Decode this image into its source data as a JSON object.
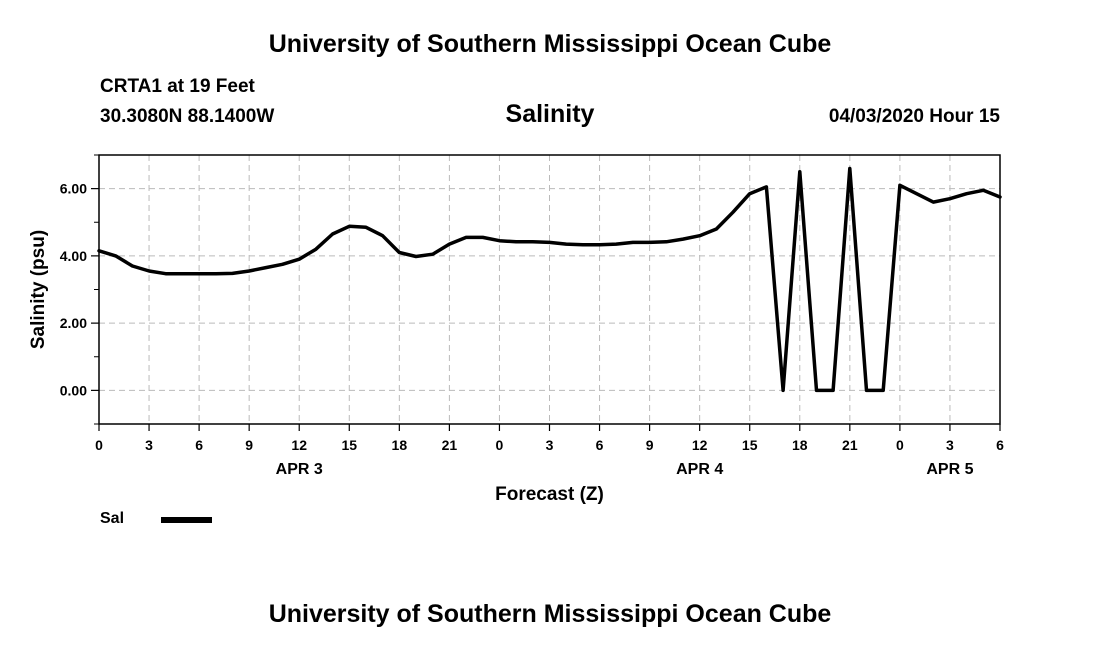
{
  "header": {
    "title": "University of Southern Mississippi Ocean Cube",
    "station": "CRTA1 at 19 Feet",
    "location": "30.3080N 88.1400W",
    "datetime": "04/03/2020 Hour 15"
  },
  "footer": {
    "title": "University of Southern Mississippi Ocean Cube"
  },
  "legend": {
    "label": "Sal"
  },
  "chart_data": {
    "type": "line",
    "title": "Salinity",
    "xlabel": "Forecast (Z)",
    "ylabel": "Salinity (psu)",
    "xlim": [
      0,
      54
    ],
    "ylim": [
      -1,
      7
    ],
    "x_ticks": [
      0,
      3,
      6,
      9,
      12,
      15,
      18,
      21,
      24,
      27,
      30,
      33,
      36,
      39,
      42,
      45,
      48,
      51,
      54
    ],
    "x_tick_labels": [
      "0",
      "3",
      "6",
      "9",
      "12",
      "15",
      "18",
      "21",
      "0",
      "3",
      "6",
      "9",
      "12",
      "15",
      "18",
      "21",
      "0",
      "3",
      "6"
    ],
    "date_labels": [
      {
        "x": 12,
        "label": "APR 3"
      },
      {
        "x": 36,
        "label": "APR 4"
      },
      {
        "x": 51,
        "label": "APR 5"
      }
    ],
    "y_ticks": [
      0,
      2,
      4,
      6
    ],
    "y_tick_labels": [
      "0.00",
      "2.00",
      "4.00",
      "6.00"
    ],
    "grid": true,
    "series": [
      {
        "name": "Sal",
        "color": "#000000",
        "x": [
          0,
          1,
          2,
          3,
          4,
          5,
          6,
          7,
          8,
          9,
          10,
          11,
          12,
          13,
          14,
          15,
          16,
          17,
          18,
          19,
          20,
          21,
          22,
          23,
          24,
          25,
          26,
          27,
          28,
          29,
          30,
          31,
          32,
          33,
          34,
          35,
          36,
          37,
          38,
          39,
          40,
          41,
          42,
          43,
          44,
          45,
          46,
          47,
          48,
          49,
          50,
          51,
          52,
          53,
          54
        ],
        "values": [
          4.15,
          4.0,
          3.7,
          3.55,
          3.47,
          3.47,
          3.47,
          3.47,
          3.48,
          3.55,
          3.65,
          3.75,
          3.9,
          4.2,
          4.65,
          4.88,
          4.85,
          4.6,
          4.1,
          3.98,
          4.05,
          4.35,
          4.55,
          4.55,
          4.45,
          4.42,
          4.42,
          4.4,
          4.35,
          4.33,
          4.33,
          4.35,
          4.4,
          4.4,
          4.42,
          4.5,
          4.6,
          4.8,
          5.3,
          5.85,
          6.05,
          0.0,
          6.5,
          0.0,
          0.0,
          6.6,
          0.0,
          0.0,
          6.1,
          5.85,
          5.6,
          5.7,
          5.85,
          5.95,
          5.75
        ]
      }
    ]
  }
}
